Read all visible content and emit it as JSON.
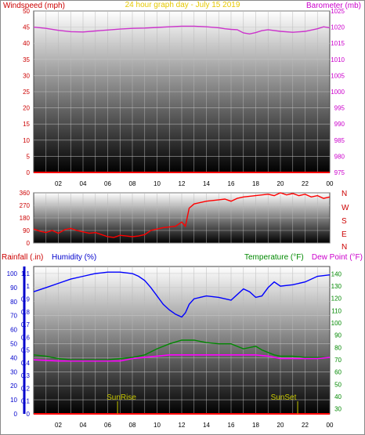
{
  "header": {
    "left_label": "Windspeed (mph)",
    "title": "24 hour graph day - July 15 2019",
    "right_label": "Barometer (mb)"
  },
  "colors": {
    "wind": "#ff0000",
    "baro": "#cc33cc",
    "dir": "#ff0000",
    "humidity": "#0000ff",
    "temperature": "#008800",
    "dewpoint": "#ff00ff",
    "rain_axis": "#0000cc",
    "title": "#e6c800",
    "compass": "#cc0000",
    "sun": "#c8c800"
  },
  "bottom_labels": {
    "rainfall": "Rainfall (.in)",
    "humidity": "Humidity (%)",
    "temperature": "Temperature (°F)",
    "dewpoint": "Dew Point (°F)",
    "sunrise": "SunRise",
    "sunset": "SunSet"
  },
  "compass_labels": [
    "N",
    "W",
    "S",
    "E",
    "N"
  ],
  "chart_data": [
    {
      "type": "line",
      "title": "24 hour graph day - July 15 2019",
      "x_ticks": [
        "02",
        "04",
        "06",
        "08",
        "10",
        "12",
        "14",
        "16",
        "18",
        "20",
        "22",
        "00"
      ],
      "xlim": [
        0,
        24
      ],
      "y_left_label": "Windspeed (mph)",
      "y_left_ticks": [
        0,
        5,
        10,
        15,
        20,
        25,
        30,
        35,
        40,
        45,
        50
      ],
      "y_right_label": "Barometer (mb)",
      "y_right_ticks": [
        975,
        980,
        985,
        990,
        995,
        1000,
        1005,
        1010,
        1015,
        1020,
        1025
      ],
      "series": [
        {
          "name": "Windspeed (mph)",
          "axis": "left",
          "x": [
            0,
            24
          ],
          "y": [
            0,
            0
          ]
        },
        {
          "name": "Barometer (mb)",
          "axis": "right",
          "x": [
            0,
            1,
            2,
            3,
            4,
            5,
            6,
            7,
            8,
            9,
            10,
            11,
            12,
            13,
            14,
            15,
            15.5,
            16,
            16.5,
            17,
            17.5,
            18,
            18.5,
            19,
            20,
            21,
            22,
            23,
            23.5,
            24
          ],
          "y": [
            1020,
            1019.6,
            1019,
            1018.6,
            1018.5,
            1018.8,
            1019.1,
            1019.4,
            1019.6,
            1019.7,
            1019.9,
            1020.1,
            1020.3,
            1020.3,
            1020.1,
            1019.8,
            1019.5,
            1019.3,
            1019.2,
            1018.2,
            1017.9,
            1018.3,
            1018.9,
            1019.2,
            1018.7,
            1018.4,
            1018.7,
            1019.5,
            1020.1,
            1019.8
          ]
        }
      ]
    },
    {
      "type": "line",
      "xlim": [
        0,
        24
      ],
      "y_ticks": [
        0,
        90,
        180,
        270,
        360
      ],
      "ylim": [
        0,
        360
      ],
      "series": [
        {
          "name": "Wind direction",
          "axis": "left",
          "x": [
            0,
            0.5,
            1,
            1.5,
            2,
            2.5,
            3,
            3.5,
            4,
            4.5,
            5,
            5.5,
            6,
            6.5,
            7,
            7.5,
            8,
            8.5,
            9,
            9.5,
            10,
            10.5,
            11,
            11.5,
            12,
            12.3,
            12.6,
            13,
            13.5,
            14,
            14.5,
            15,
            15.5,
            16,
            16.5,
            17,
            17.5,
            18,
            18.5,
            19,
            19.5,
            20,
            20.5,
            21,
            21.5,
            22,
            22.5,
            23,
            23.5,
            24
          ],
          "y": [
            100,
            85,
            75,
            90,
            70,
            95,
            105,
            90,
            80,
            70,
            75,
            60,
            45,
            40,
            55,
            50,
            45,
            50,
            60,
            90,
            100,
            110,
            115,
            120,
            150,
            120,
            250,
            280,
            290,
            300,
            305,
            310,
            315,
            300,
            320,
            330,
            335,
            340,
            345,
            350,
            340,
            360,
            345,
            355,
            340,
            350,
            330,
            340,
            320,
            330
          ]
        }
      ]
    },
    {
      "type": "line",
      "xlim": [
        0,
        24
      ],
      "y_rain_label": "Rainfall (.in)",
      "y_rain_ticks": [
        0,
        0.1,
        0.2,
        0.3,
        0.4,
        0.5,
        0.6,
        0.7,
        0.8,
        0.9,
        1,
        1.1
      ],
      "y_humidity_label": "Humidity (%)",
      "y_humidity_ticks": [
        0,
        10,
        20,
        30,
        40,
        50,
        60,
        70,
        80,
        90,
        100
      ],
      "y_temp_label": "Temperature (°F)",
      "y_temp_ticks": [
        30,
        40,
        50,
        60,
        70,
        80,
        90,
        100,
        110,
        120,
        130,
        140
      ],
      "series": [
        {
          "name": "Humidity (%)",
          "axis": "humidity",
          "x": [
            0,
            1,
            2,
            3,
            4,
            5,
            6,
            7,
            8,
            8.5,
            9,
            9.5,
            10,
            10.5,
            11,
            11.5,
            12,
            12.3,
            12.6,
            13,
            14,
            15,
            16,
            16.5,
            17,
            17.5,
            18,
            18.5,
            19,
            19.5,
            20,
            21,
            22,
            23,
            24
          ],
          "y": [
            87,
            90,
            93,
            96,
            98,
            100,
            101,
            101,
            100,
            98,
            95,
            90,
            84,
            78,
            74,
            71,
            69,
            72,
            78,
            82,
            84,
            83,
            81,
            85,
            89,
            87,
            83,
            84,
            90,
            94,
            91,
            92,
            94,
            98,
            99
          ]
        },
        {
          "name": "Temperature (°F)",
          "axis": "temp",
          "x": [
            0,
            1,
            2,
            3,
            4,
            5,
            6,
            7,
            8,
            9,
            10,
            11,
            12,
            13,
            14,
            15,
            16,
            17,
            17.5,
            18,
            18.5,
            19,
            19.5,
            20,
            21,
            22,
            23,
            24
          ],
          "y": [
            74,
            73,
            71,
            70,
            70,
            70,
            70,
            71,
            72,
            74,
            79,
            83,
            86,
            86,
            84,
            83,
            83,
            79,
            80,
            81,
            78,
            76,
            74,
            73,
            73,
            72,
            72,
            72
          ]
        },
        {
          "name": "Dew Point (°F)",
          "axis": "temp",
          "x": [
            0,
            2,
            4,
            6,
            7,
            8,
            9,
            10,
            11,
            12,
            13,
            14,
            15,
            16,
            17,
            18,
            19,
            20,
            21,
            22,
            23,
            24
          ],
          "y": [
            70,
            69,
            69,
            69,
            69,
            71,
            72,
            73,
            74,
            74,
            74,
            74,
            74,
            74,
            74,
            74,
            73,
            71,
            71,
            71,
            71,
            72
          ]
        },
        {
          "name": "Rainfall (.in)",
          "axis": "rain",
          "x": [
            0,
            24
          ],
          "y": [
            0,
            0
          ]
        }
      ],
      "annotations": [
        {
          "text": "SunRise",
          "x": 6.8
        },
        {
          "text": "SunSet",
          "x": 21.4
        }
      ]
    }
  ]
}
